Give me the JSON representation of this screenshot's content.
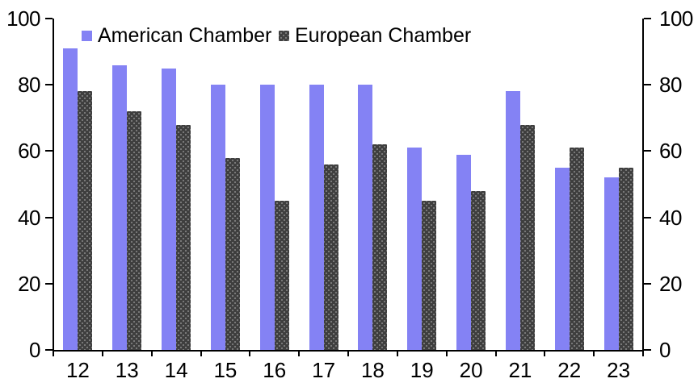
{
  "chart_data": {
    "type": "bar",
    "title": "",
    "xlabel": "",
    "ylabel": "",
    "categories": [
      "12",
      "13",
      "14",
      "15",
      "16",
      "17",
      "18",
      "19",
      "20",
      "21",
      "22",
      "23"
    ],
    "series": [
      {
        "name": "American Chamber",
        "color": "#8482f4",
        "values": [
          91,
          86,
          85,
          80,
          80,
          80,
          80,
          61,
          59,
          78,
          55,
          52
        ]
      },
      {
        "name": "European Chamber",
        "color": "#3e3e3e",
        "pattern": "dots",
        "dot_color": "#828282",
        "values": [
          78,
          72,
          68,
          58,
          45,
          56,
          62,
          45,
          48,
          68,
          61,
          55
        ]
      }
    ],
    "ylim": [
      0,
      100
    ],
    "yticks_left": [
      "0",
      "20",
      "40",
      "60",
      "80",
      "100"
    ],
    "yticks_right": [
      "0",
      "20",
      "40",
      "60",
      "80",
      "100"
    ],
    "grid": false,
    "legend_position": "top-inside",
    "axis_color": "#000000",
    "background_color": "#ffffff"
  }
}
